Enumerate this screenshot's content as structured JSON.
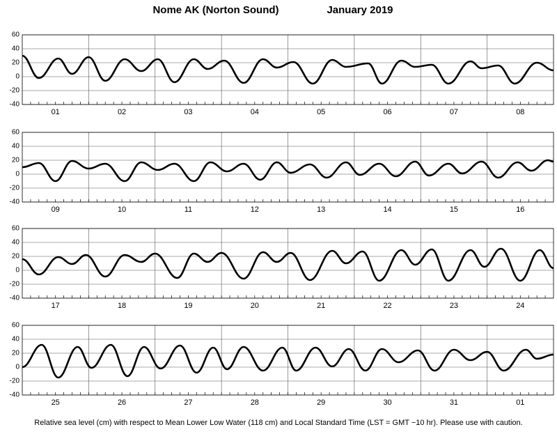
{
  "header": {
    "station": "Nome AK (Norton Sound)",
    "month": "January   2019"
  },
  "footer": "Relative sea level (cm) with respect to Mean Lower Low Water (118 cm) and Local Standard Time (LST = GMT −10 hr). Please use with caution.",
  "chart_data": [
    {
      "type": "line",
      "categories": [
        "01",
        "02",
        "03",
        "04",
        "05",
        "06",
        "07",
        "08"
      ],
      "xlim": [
        0,
        192
      ],
      "ylim": [
        -40,
        60
      ],
      "yticks": [
        -40,
        -20,
        0,
        20,
        40,
        60
      ],
      "grid": true,
      "color": "#000000",
      "x": [
        0,
        6,
        13,
        18,
        24,
        30,
        37,
        43,
        49,
        55,
        62,
        67,
        73,
        80,
        87,
        92,
        98,
        105,
        112,
        117,
        125,
        130,
        137,
        142,
        148,
        154,
        162,
        166,
        172,
        178,
        186,
        192
      ],
      "values": [
        30,
        -2,
        26,
        4,
        28,
        -6,
        25,
        8,
        25,
        -8,
        25,
        11,
        23,
        -9,
        25,
        13,
        21,
        -10,
        24,
        14,
        19,
        -10,
        23,
        14,
        17,
        -10,
        22,
        12,
        16,
        -10,
        20,
        9
      ]
    },
    {
      "type": "line",
      "categories": [
        "09",
        "10",
        "11",
        "12",
        "13",
        "14",
        "15",
        "16"
      ],
      "xlim": [
        0,
        192
      ],
      "ylim": [
        -40,
        60
      ],
      "yticks": [
        -40,
        -20,
        0,
        20,
        40,
        60
      ],
      "grid": true,
      "color": "#000000",
      "x": [
        0,
        6,
        12,
        18,
        24,
        30,
        37,
        43,
        49,
        55,
        62,
        68,
        74,
        80,
        86,
        92,
        97,
        104,
        110,
        117,
        122,
        129,
        135,
        142,
        147,
        154,
        159,
        166,
        172,
        179,
        184,
        190,
        192
      ],
      "values": [
        10,
        16,
        -10,
        19,
        8,
        15,
        -10,
        17,
        6,
        15,
        -10,
        17,
        4,
        15,
        -8,
        17,
        2,
        14,
        -5,
        17,
        -1,
        15,
        -3,
        18,
        -2,
        15,
        1,
        18,
        -5,
        17,
        5,
        20,
        18
      ]
    },
    {
      "type": "line",
      "categories": [
        "17",
        "18",
        "19",
        "20",
        "21",
        "22",
        "23",
        "24"
      ],
      "xlim": [
        0,
        192
      ],
      "ylim": [
        -40,
        60
      ],
      "yticks": [
        -40,
        -20,
        0,
        20,
        40,
        60
      ],
      "grid": true,
      "color": "#000000",
      "x": [
        0,
        6,
        13,
        18,
        23,
        30,
        37,
        43,
        48,
        56,
        62,
        67,
        72,
        80,
        87,
        92,
        97,
        104,
        112,
        117,
        123,
        129,
        137,
        142,
        148,
        154,
        162,
        167,
        173,
        180,
        187,
        192
      ],
      "values": [
        16,
        -6,
        19,
        9,
        22,
        -9,
        22,
        12,
        24,
        -11,
        24,
        12,
        25,
        -12,
        26,
        12,
        25,
        -14,
        28,
        10,
        27,
        -15,
        29,
        8,
        30,
        -15,
        29,
        5,
        31,
        -15,
        29,
        3
      ]
    },
    {
      "type": "line",
      "categories": [
        "25",
        "26",
        "27",
        "28",
        "29",
        "30",
        "31",
        "01"
      ],
      "xlim": [
        0,
        192
      ],
      "ylim": [
        -40,
        60
      ],
      "yticks": [
        -40,
        -20,
        0,
        20,
        40,
        60
      ],
      "grid": true,
      "color": "#000000",
      "x": [
        0,
        7,
        13,
        20,
        25,
        32,
        38,
        44,
        50,
        57,
        63,
        69,
        74,
        80,
        87,
        94,
        99,
        106,
        112,
        118,
        124,
        130,
        136,
        143,
        149,
        156,
        162,
        168,
        174,
        182,
        186,
        192
      ],
      "values": [
        0,
        32,
        -15,
        29,
        -1,
        32,
        -13,
        29,
        -2,
        31,
        -8,
        28,
        -3,
        29,
        -5,
        28,
        -5,
        28,
        1,
        26,
        -5,
        26,
        7,
        24,
        -5,
        25,
        10,
        22,
        -5,
        25,
        12,
        18
      ]
    }
  ]
}
